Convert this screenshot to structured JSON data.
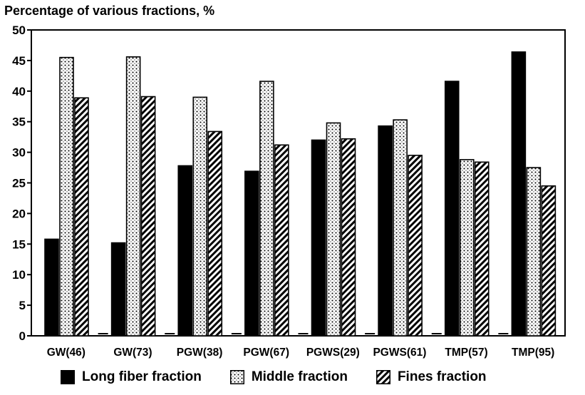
{
  "chart_data": {
    "type": "bar",
    "title": "Percentage of various fractions, %",
    "xlabel": "",
    "ylabel": "",
    "ylim": [
      0,
      50
    ],
    "yticks": [
      0,
      5,
      10,
      15,
      20,
      25,
      30,
      35,
      40,
      45,
      50
    ],
    "categories": [
      "GW(46)",
      "GW(73)",
      "PGW(38)",
      "PGW(67)",
      "PGWS(29)",
      "PGWS(61)",
      "TMP(57)",
      "TMP(95)"
    ],
    "series": [
      {
        "name": "Long fiber fraction",
        "pattern": "solid",
        "color": "#000000",
        "values": [
          15.8,
          15.2,
          27.8,
          26.9,
          32.0,
          34.3,
          41.6,
          46.4
        ]
      },
      {
        "name": "Middle fraction",
        "pattern": "dotted",
        "color": "#000000",
        "values": [
          45.5,
          45.6,
          39.0,
          41.6,
          34.8,
          35.3,
          28.8,
          27.5
        ]
      },
      {
        "name": "Fines fraction",
        "pattern": "hatched",
        "color": "#000000",
        "values": [
          38.9,
          39.1,
          33.4,
          31.2,
          32.2,
          29.5,
          28.4,
          24.5
        ]
      }
    ],
    "grid": false,
    "legend_position": "bottom"
  }
}
